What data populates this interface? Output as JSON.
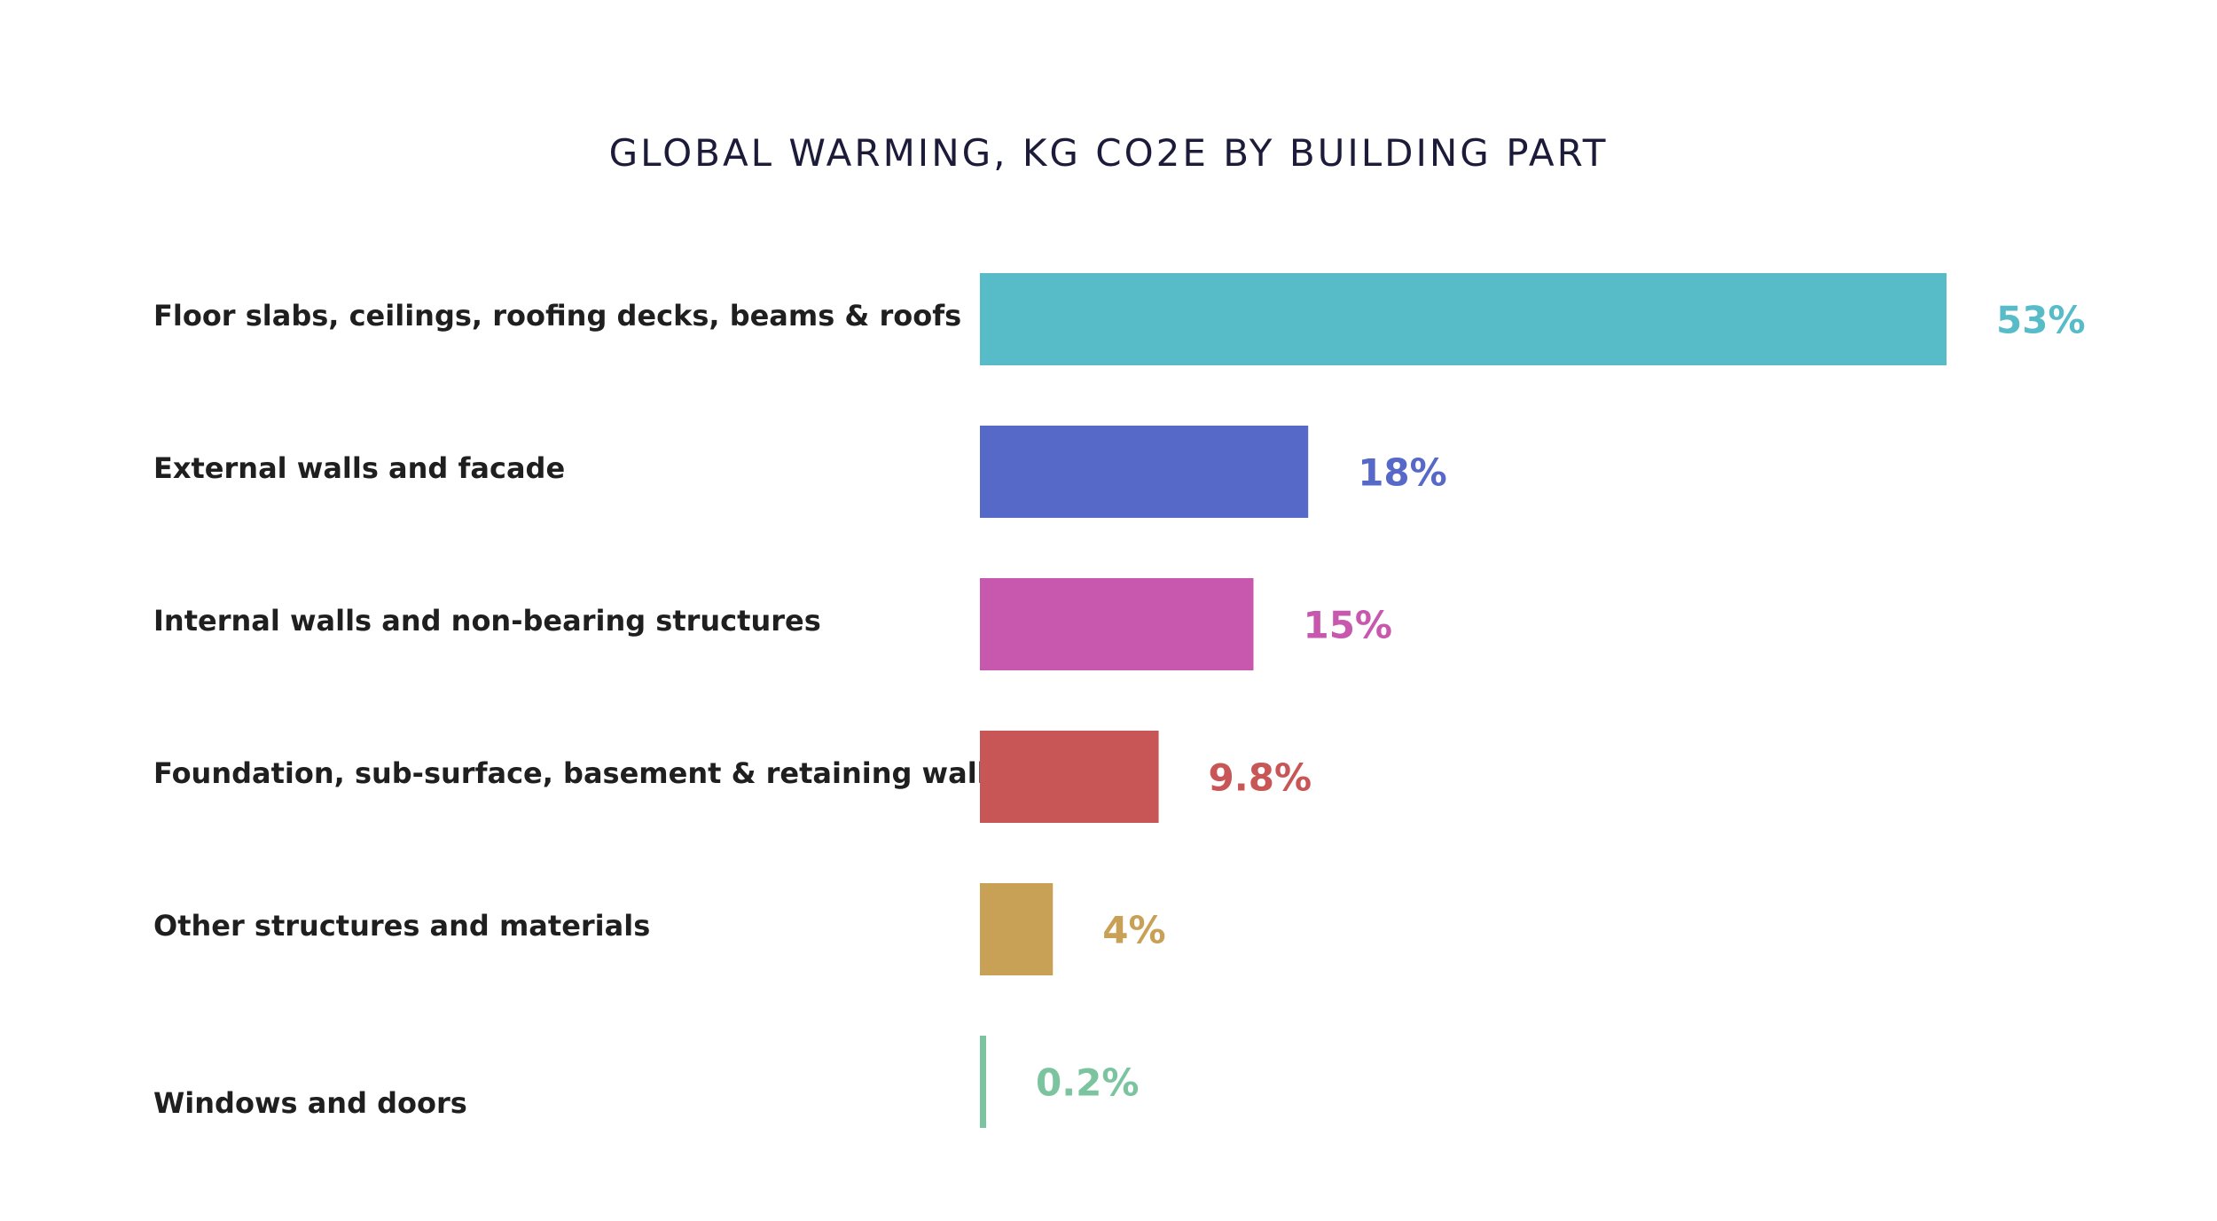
{
  "chart_data": {
    "type": "bar",
    "orientation": "horizontal",
    "title": "GLOBAL WARMING, KG CO2E BY BUILDING PART",
    "unit": "%",
    "categories": [
      "Floor slabs, ceilings, roofing decks, beams & roofs",
      "External walls and facade",
      "Internal walls and non-bearing structures",
      "Foundation, sub-surface, basement & retaining walls",
      "Other structures and materials",
      "Windows and doors"
    ],
    "values": [
      53,
      18,
      15,
      9.8,
      4,
      0.2
    ],
    "value_labels": [
      "53%",
      "18%",
      "15%",
      "9.8%",
      "4%",
      "0.2%"
    ],
    "colors": [
      "#57bcc8",
      "#5669c8",
      "#c857ae",
      "#c85656",
      "#c8a056",
      "#7cc4a0"
    ],
    "xlim": [
      0,
      53
    ],
    "grid": false,
    "legend": "none"
  }
}
